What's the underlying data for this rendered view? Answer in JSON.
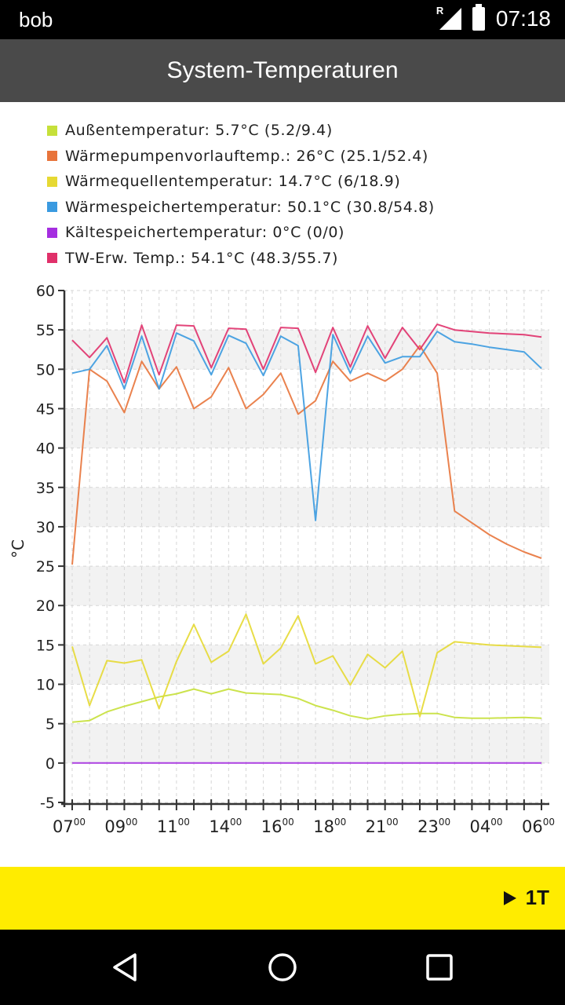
{
  "status_bar": {
    "carrier": "bob",
    "time": "07:18",
    "signal_label": "R"
  },
  "app_bar": {
    "title": "System-Temperaturen"
  },
  "legend": [
    {
      "label": "Außentemperatur:  5.7°C (5.2/9.4)",
      "color": "#c6e03a"
    },
    {
      "label": "Wärmepumpenvorlauftemp.:  26°C (25.1/52.4)",
      "color": "#e8743b"
    },
    {
      "label": "Wärmequellentemperatur:  14.7°C (6/18.9)",
      "color": "#e6d933"
    },
    {
      "label": "Wärmespeichertemperatur:  50.1°C (30.8/54.8)",
      "color": "#3a9ae0"
    },
    {
      "label": "Kältespeichertemperatur:  0°C (0/0)",
      "color": "#a52ee0"
    },
    {
      "label": "TW-Erw. Temp.:  54.1°C (48.3/55.7)",
      "color": "#e0306a"
    }
  ],
  "chart_data": {
    "type": "line",
    "ylabel": "°C",
    "ylim": [
      -5,
      60
    ],
    "yticks": [
      -5,
      0,
      5,
      10,
      15,
      20,
      25,
      30,
      35,
      40,
      45,
      50,
      55,
      60
    ],
    "xtick_labels": [
      {
        "h": "07",
        "m": "00",
        "i": 0
      },
      {
        "h": "09",
        "m": "00",
        "i": 3
      },
      {
        "h": "11",
        "m": "00",
        "i": 6
      },
      {
        "h": "14",
        "m": "00",
        "i": 9
      },
      {
        "h": "16",
        "m": "00",
        "i": 12
      },
      {
        "h": "18",
        "m": "00",
        "i": 15
      },
      {
        "h": "21",
        "m": "00",
        "i": 18
      },
      {
        "h": "23",
        "m": "00",
        "i": 21
      },
      {
        "h": "04",
        "m": "00",
        "i": 24
      },
      {
        "h": "06",
        "m": "00",
        "i": 27
      }
    ],
    "x_count": 28,
    "series": [
      {
        "name": "Außentemperatur",
        "color": "#c6e03a",
        "points": [
          [
            0,
            5.2
          ],
          [
            1,
            5.4
          ],
          [
            2,
            6.5
          ],
          [
            3,
            7.2
          ],
          [
            4,
            7.8
          ],
          [
            5,
            8.4
          ],
          [
            6,
            8.8
          ],
          [
            7,
            9.4
          ],
          [
            8,
            8.8
          ],
          [
            9,
            9.4
          ],
          [
            10,
            8.9
          ],
          [
            11,
            8.8
          ],
          [
            12,
            8.7
          ],
          [
            13,
            8.2
          ],
          [
            14,
            7.3
          ],
          [
            15,
            6.7
          ],
          [
            16,
            6.0
          ],
          [
            17,
            5.6
          ],
          [
            18,
            6.0
          ],
          [
            19,
            6.2
          ],
          [
            20,
            6.3
          ],
          [
            21,
            6.3
          ],
          [
            22,
            5.8
          ],
          [
            23,
            5.7
          ],
          [
            24,
            5.7
          ],
          [
            26,
            5.8
          ],
          [
            27,
            5.7
          ]
        ]
      },
      {
        "name": "Wärmepumpenvorlauftemp.",
        "color": "#e8743b",
        "points": [
          [
            0,
            25.2
          ],
          [
            1,
            50.0
          ],
          [
            2,
            48.5
          ],
          [
            3,
            44.5
          ],
          [
            4,
            51.0
          ],
          [
            5,
            47.5
          ],
          [
            6,
            50.3
          ],
          [
            7,
            45.0
          ],
          [
            8,
            46.5
          ],
          [
            9,
            50.2
          ],
          [
            10,
            45.0
          ],
          [
            11,
            46.8
          ],
          [
            12,
            49.5
          ],
          [
            13,
            44.3
          ],
          [
            14,
            46.0
          ],
          [
            15,
            51.0
          ],
          [
            16,
            48.5
          ],
          [
            17,
            49.5
          ],
          [
            18,
            48.5
          ],
          [
            19,
            50.0
          ],
          [
            20,
            53.0
          ],
          [
            21,
            49.5
          ],
          [
            22,
            32.0
          ],
          [
            23,
            30.5
          ],
          [
            24,
            29.0
          ],
          [
            25,
            27.8
          ],
          [
            26,
            26.8
          ],
          [
            27,
            26.0
          ]
        ]
      },
      {
        "name": "Wärmequellentemperatur",
        "color": "#e6d933",
        "points": [
          [
            0,
            14.8
          ],
          [
            1,
            7.3
          ],
          [
            2,
            13.0
          ],
          [
            3,
            12.7
          ],
          [
            4,
            13.1
          ],
          [
            5,
            6.9
          ],
          [
            6,
            12.9
          ],
          [
            7,
            17.6
          ],
          [
            8,
            12.8
          ],
          [
            9,
            14.2
          ],
          [
            10,
            18.9
          ],
          [
            11,
            12.6
          ],
          [
            12,
            14.6
          ],
          [
            13,
            18.7
          ],
          [
            14,
            12.6
          ],
          [
            15,
            13.6
          ],
          [
            16,
            9.9
          ],
          [
            17,
            13.8
          ],
          [
            18,
            12.1
          ],
          [
            19,
            14.2
          ],
          [
            20,
            5.9
          ],
          [
            21,
            14.0
          ],
          [
            22,
            15.4
          ],
          [
            23,
            15.2
          ],
          [
            24,
            15.0
          ],
          [
            26,
            14.8
          ],
          [
            27,
            14.7
          ]
        ]
      },
      {
        "name": "Wärmespeichertemperatur",
        "color": "#3a9ae0",
        "points": [
          [
            0,
            49.5
          ],
          [
            1,
            50.0
          ],
          [
            2,
            53.0
          ],
          [
            3,
            47.5
          ],
          [
            4,
            54.2
          ],
          [
            5,
            47.5
          ],
          [
            6,
            54.6
          ],
          [
            7,
            53.6
          ],
          [
            8,
            49.3
          ],
          [
            9,
            54.3
          ],
          [
            10,
            53.3
          ],
          [
            11,
            49.2
          ],
          [
            12,
            54.2
          ],
          [
            13,
            53.0
          ],
          [
            14,
            30.8
          ],
          [
            15,
            54.4
          ],
          [
            16,
            49.5
          ],
          [
            17,
            54.2
          ],
          [
            18,
            50.8
          ],
          [
            19,
            51.6
          ],
          [
            20,
            51.6
          ],
          [
            21,
            54.8
          ],
          [
            22,
            53.5
          ],
          [
            23,
            53.2
          ],
          [
            24,
            52.8
          ],
          [
            26,
            52.2
          ],
          [
            27,
            50.1
          ]
        ]
      },
      {
        "name": "Kältespeichertemperatur",
        "color": "#a52ee0",
        "points": [
          [
            0,
            0
          ],
          [
            27,
            0
          ]
        ]
      },
      {
        "name": "TW-Erw. Temp.",
        "color": "#e0306a",
        "points": [
          [
            0,
            53.7
          ],
          [
            1,
            51.5
          ],
          [
            2,
            54.0
          ],
          [
            3,
            48.3
          ],
          [
            4,
            55.6
          ],
          [
            5,
            49.3
          ],
          [
            6,
            55.6
          ],
          [
            7,
            55.5
          ],
          [
            8,
            50.2
          ],
          [
            9,
            55.2
          ],
          [
            10,
            55.1
          ],
          [
            11,
            50.0
          ],
          [
            12,
            55.3
          ],
          [
            13,
            55.2
          ],
          [
            14,
            49.6
          ],
          [
            15,
            55.3
          ],
          [
            16,
            50.3
          ],
          [
            17,
            55.5
          ],
          [
            18,
            51.4
          ],
          [
            19,
            55.3
          ],
          [
            20,
            52.5
          ],
          [
            21,
            55.7
          ],
          [
            22,
            55.0
          ],
          [
            23,
            54.8
          ],
          [
            24,
            54.6
          ],
          [
            26,
            54.4
          ],
          [
            27,
            54.1
          ]
        ]
      }
    ]
  },
  "action_bar": {
    "period_label": "1T"
  },
  "nav_bar": {
    "back": "back",
    "home": "home",
    "recents": "recents"
  }
}
